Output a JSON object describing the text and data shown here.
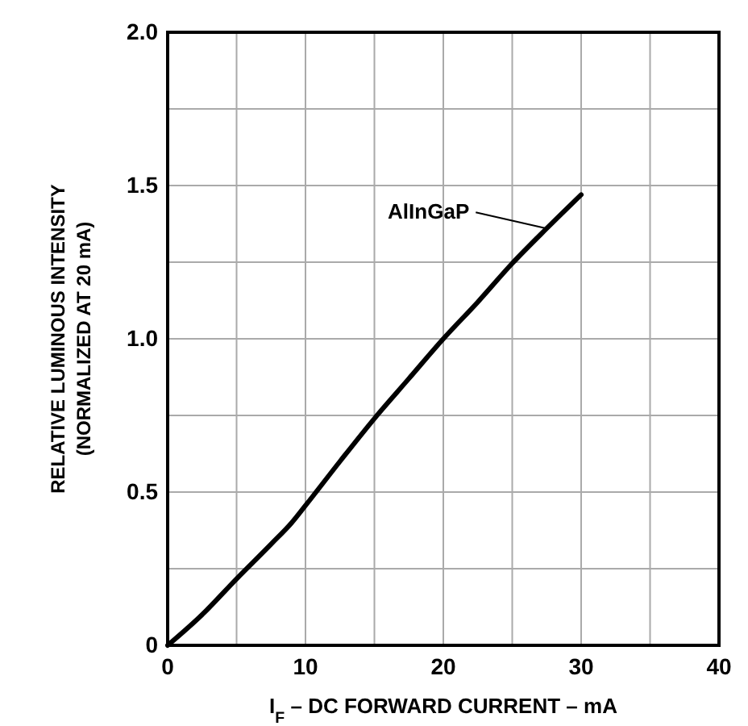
{
  "chart_data": {
    "type": "line",
    "xlabel": "I$_{F}$ – DC FORWARD CURRENT – mA",
    "ylabel": "RELATIVE LUMINOUS INTENSITY\n(NORMALIZED AT 20 mA)",
    "series": [
      {
        "name": "AlInGaP",
        "color": "#000000",
        "x": [
          0,
          2.5,
          5,
          7.5,
          9,
          10,
          12.5,
          15,
          17.5,
          20,
          22.5,
          25,
          27.5,
          30
        ],
        "values": [
          0,
          0.1,
          0.217,
          0.33,
          0.4,
          0.456,
          0.6,
          0.74,
          0.87,
          1.0,
          1.12,
          1.246,
          1.36,
          1.47
        ]
      }
    ],
    "xlim": [
      0,
      40
    ],
    "ylim": [
      0,
      2
    ],
    "xticks": [
      0,
      {
        "value": 5,
        "label": null
      },
      10,
      {
        "value": 15,
        "label": null
      },
      20,
      {
        "value": 25,
        "label": null
      },
      30,
      {
        "value": 35,
        "label": null
      },
      40
    ],
    "yticks": [
      0,
      {
        "value": 0.25,
        "label": null
      },
      {
        "value": 0.5,
        "label": "0.5"
      },
      {
        "value": 0.75,
        "label": null
      },
      {
        "value": 1,
        "label": "1.0"
      },
      {
        "value": 1.25,
        "label": null
      },
      {
        "value": 1.5,
        "label": "1.5"
      },
      {
        "value": 1.75,
        "label": null
      },
      {
        "value": 2,
        "label": "2.0"
      }
    ],
    "grid": true,
    "line_style": "solid",
    "marker": "none"
  }
}
